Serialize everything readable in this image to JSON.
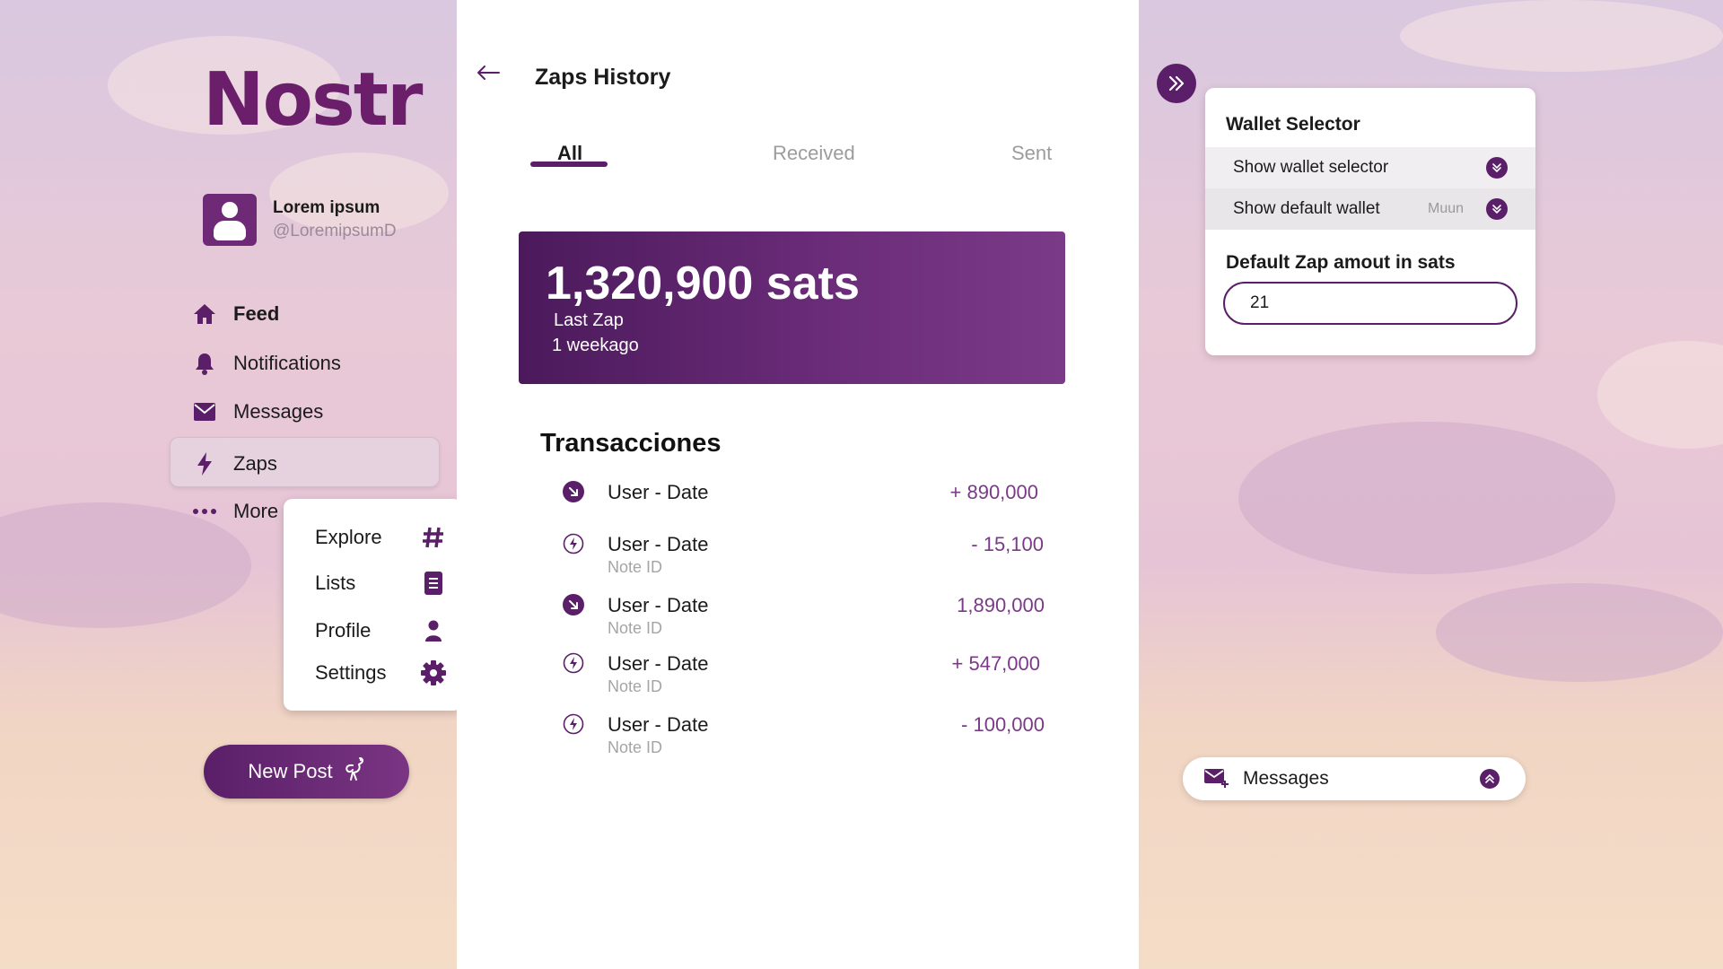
{
  "app": {
    "logo": "Nostr"
  },
  "user": {
    "name": "Lorem ipsum",
    "handle": "@LoremipsumD"
  },
  "nav": {
    "items": [
      {
        "label": "Feed",
        "icon": "home-icon"
      },
      {
        "label": "Notifications",
        "icon": "bell-icon"
      },
      {
        "label": "Messages",
        "icon": "envelope-icon"
      },
      {
        "label": "Zaps",
        "icon": "lightning-icon"
      },
      {
        "label": "More",
        "icon": "dots-icon"
      }
    ],
    "active": "Zaps"
  },
  "more_menu": {
    "items": [
      {
        "label": "Explore",
        "icon": "hash-icon"
      },
      {
        "label": "Lists",
        "icon": "list-icon"
      },
      {
        "label": "Profile",
        "icon": "person-icon"
      },
      {
        "label": "Settings",
        "icon": "gear-icon"
      }
    ]
  },
  "new_post": {
    "label": "New Post",
    "icon": "ostrich-icon"
  },
  "main": {
    "title": "Zaps History",
    "tabs": [
      {
        "label": "All"
      },
      {
        "label": "Received"
      },
      {
        "label": "Sent"
      }
    ],
    "active_tab": "All",
    "balance": {
      "amount": "1,320,900 sats",
      "label": "Last Zap",
      "time": "1 weekago"
    },
    "transactions_title": "Transacciones",
    "transactions": [
      {
        "user": "User - Date",
        "note": "",
        "amount": "+ 890,000",
        "icon": "arrow-in-icon"
      },
      {
        "user": "User - Date",
        "note": "Note ID",
        "amount": "- 15,100",
        "icon": "zap-circle-icon"
      },
      {
        "user": "User - Date",
        "note": "Note ID",
        "amount": "1,890,000",
        "icon": "arrow-in-icon"
      },
      {
        "user": "User - Date",
        "note": "Note ID",
        "amount": "+ 547,000",
        "icon": "zap-circle-icon"
      },
      {
        "user": "User - Date",
        "note": "Note ID",
        "amount": "- 100,000",
        "icon": "zap-circle-icon"
      }
    ]
  },
  "wallet": {
    "title": "Wallet Selector",
    "rows": [
      {
        "label": "Show wallet selector",
        "value": ""
      },
      {
        "label": "Show default wallet",
        "value": "Muun"
      }
    ],
    "default_zap_label": "Default Zap amout in sats",
    "default_zap_value": "21"
  },
  "messages_bar": {
    "label": "Messages"
  },
  "colors": {
    "accent": "#5a1f68",
    "amount": "#7a3a87",
    "muted": "#9c9c9c"
  }
}
